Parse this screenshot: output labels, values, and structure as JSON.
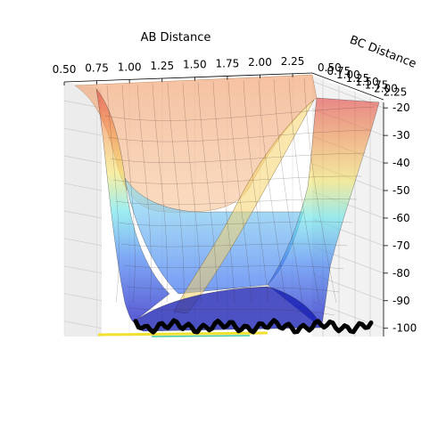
{
  "chart_data": {
    "type": "surface3d",
    "xlabel": "AB Distance",
    "ylabel": "BC Distance",
    "zlabel": "",
    "x_ticks": [
      "0.50",
      "0.75",
      "1.00",
      "1.25",
      "1.50",
      "1.75",
      "2.00",
      "2.25"
    ],
    "y_ticks": [
      "0.50",
      "0.75",
      "1.00",
      "1.25",
      "1.50",
      "1.75",
      "2.00",
      "2.25"
    ],
    "z_ticks": [
      "-20",
      "-30",
      "-40",
      "-50",
      "-60",
      "-70",
      "-80",
      "-90",
      "-100"
    ],
    "xlim": [
      0.5,
      2.4
    ],
    "ylim": [
      0.5,
      2.4
    ],
    "zlim": [
      -103,
      -18
    ],
    "grid": true,
    "colormap": "jet",
    "trajectory_color": "#000000",
    "trajectory_note_z": -100,
    "surface": {
      "ridge_start_z": -20,
      "valley_floor_z": -103,
      "plateau_z": -58
    }
  }
}
